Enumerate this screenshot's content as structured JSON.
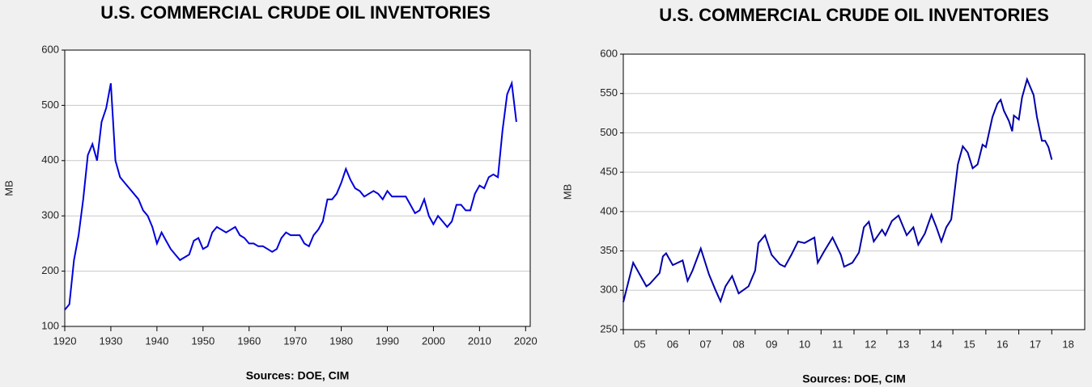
{
  "chart_data": [
    {
      "type": "line",
      "title": "U.S. COMMERCIAL CRUDE OIL INVENTORIES",
      "ylabel": "MB",
      "source": "Sources:  DOE, CIM",
      "color": "#0000dd",
      "grid": true,
      "x": [
        1920,
        1921,
        1922,
        1923,
        1924,
        1925,
        1926,
        1927,
        1928,
        1929,
        1930,
        1931,
        1932,
        1933,
        1934,
        1935,
        1936,
        1937,
        1938,
        1939,
        1940,
        1941,
        1942,
        1943,
        1944,
        1945,
        1946,
        1947,
        1948,
        1949,
        1950,
        1951,
        1952,
        1953,
        1954,
        1955,
        1956,
        1957,
        1958,
        1959,
        1960,
        1961,
        1962,
        1963,
        1964,
        1965,
        1966,
        1967,
        1968,
        1969,
        1970,
        1971,
        1972,
        1973,
        1974,
        1975,
        1976,
        1977,
        1978,
        1979,
        1980,
        1981,
        1982,
        1983,
        1984,
        1985,
        1986,
        1987,
        1988,
        1989,
        1990,
        1991,
        1992,
        1993,
        1994,
        1995,
        1996,
        1997,
        1998,
        1999,
        2000,
        2001,
        2002,
        2003,
        2004,
        2005,
        2006,
        2007,
        2008,
        2009,
        2010,
        2011,
        2012,
        2013,
        2014,
        2015,
        2016,
        2017,
        2018
      ],
      "values": [
        130,
        140,
        220,
        265,
        330,
        410,
        430,
        400,
        470,
        495,
        540,
        400,
        370,
        360,
        350,
        340,
        330,
        310,
        300,
        280,
        250,
        270,
        255,
        240,
        230,
        220,
        225,
        230,
        255,
        260,
        240,
        245,
        270,
        280,
        275,
        270,
        275,
        280,
        265,
        260,
        250,
        250,
        245,
        245,
        240,
        235,
        240,
        260,
        270,
        265,
        265,
        265,
        250,
        245,
        265,
        275,
        290,
        330,
        330,
        340,
        360,
        385,
        365,
        350,
        345,
        335,
        340,
        345,
        340,
        330,
        345,
        335,
        335,
        335,
        335,
        320,
        305,
        310,
        330,
        300,
        285,
        300,
        290,
        280,
        290,
        320,
        320,
        310,
        310,
        340,
        355,
        350,
        370,
        375,
        370,
        455,
        520,
        540,
        470
      ],
      "xlim": [
        1920,
        2021
      ],
      "ylim": [
        100,
        600
      ],
      "xticks": [
        1920,
        1930,
        1940,
        1950,
        1960,
        1970,
        1980,
        1990,
        2000,
        2010,
        2020
      ],
      "yticks": [
        100,
        200,
        300,
        400,
        500,
        600
      ]
    },
    {
      "type": "line",
      "title": "U.S. COMMERCIAL CRUDE OIL INVENTORIES",
      "ylabel": "MB",
      "source": "Sources:  DOE, CIM",
      "color": "#0000aa",
      "grid": true,
      "x": [
        2005.0,
        2005.3,
        2005.7,
        2005.8,
        2006.1,
        2006.2,
        2006.3,
        2006.5,
        2006.8,
        2006.95,
        2007.1,
        2007.35,
        2007.6,
        2007.8,
        2007.95,
        2008.1,
        2008.3,
        2008.5,
        2008.8,
        2009.0,
        2009.1,
        2009.3,
        2009.5,
        2009.75,
        2009.9,
        2010.1,
        2010.3,
        2010.5,
        2010.8,
        2010.9,
        2011.1,
        2011.35,
        2011.6,
        2011.7,
        2011.95,
        2012.15,
        2012.3,
        2012.45,
        2012.6,
        2012.85,
        2012.95,
        2013.15,
        2013.35,
        2013.6,
        2013.8,
        2013.95,
        2014.15,
        2014.35,
        2014.5,
        2014.65,
        2014.8,
        2014.95,
        2015.15,
        2015.3,
        2015.45,
        2015.6,
        2015.75,
        2015.9,
        2016.0,
        2016.2,
        2016.35,
        2016.45,
        2016.55,
        2016.7,
        2016.8,
        2016.85,
        2017.0,
        2017.1,
        2017.25,
        2017.45,
        2017.55,
        2017.7,
        2017.8,
        2017.9,
        2018.0
      ],
      "values": [
        285,
        335,
        305,
        308,
        322,
        343,
        347,
        332,
        338,
        312,
        325,
        353,
        320,
        300,
        286,
        305,
        318,
        296,
        305,
        325,
        360,
        370,
        345,
        333,
        330,
        345,
        362,
        360,
        367,
        335,
        350,
        367,
        345,
        330,
        335,
        348,
        380,
        387,
        362,
        377,
        370,
        388,
        395,
        370,
        380,
        358,
        372,
        396,
        380,
        362,
        380,
        390,
        460,
        483,
        475,
        455,
        460,
        485,
        482,
        520,
        537,
        542,
        528,
        515,
        502,
        522,
        517,
        545,
        568,
        548,
        520,
        490,
        490,
        482,
        466
      ],
      "xlim": [
        2005,
        2019
      ],
      "ylim": [
        250,
        600
      ],
      "xticks": [
        {
          "value": 2005,
          "label": "05"
        },
        {
          "value": 2006,
          "label": "06"
        },
        {
          "value": 2007,
          "label": "07"
        },
        {
          "value": 2008,
          "label": "08"
        },
        {
          "value": 2009,
          "label": "09"
        },
        {
          "value": 2010,
          "label": "10"
        },
        {
          "value": 2011,
          "label": "11"
        },
        {
          "value": 2012,
          "label": "12"
        },
        {
          "value": 2013,
          "label": "13"
        },
        {
          "value": 2014,
          "label": "14"
        },
        {
          "value": 2015,
          "label": "15"
        },
        {
          "value": 2016,
          "label": "16"
        },
        {
          "value": 2017,
          "label": "17"
        },
        {
          "value": 2018,
          "label": "18"
        }
      ],
      "yticks": [
        250,
        300,
        350,
        400,
        450,
        500,
        550,
        600
      ]
    }
  ]
}
